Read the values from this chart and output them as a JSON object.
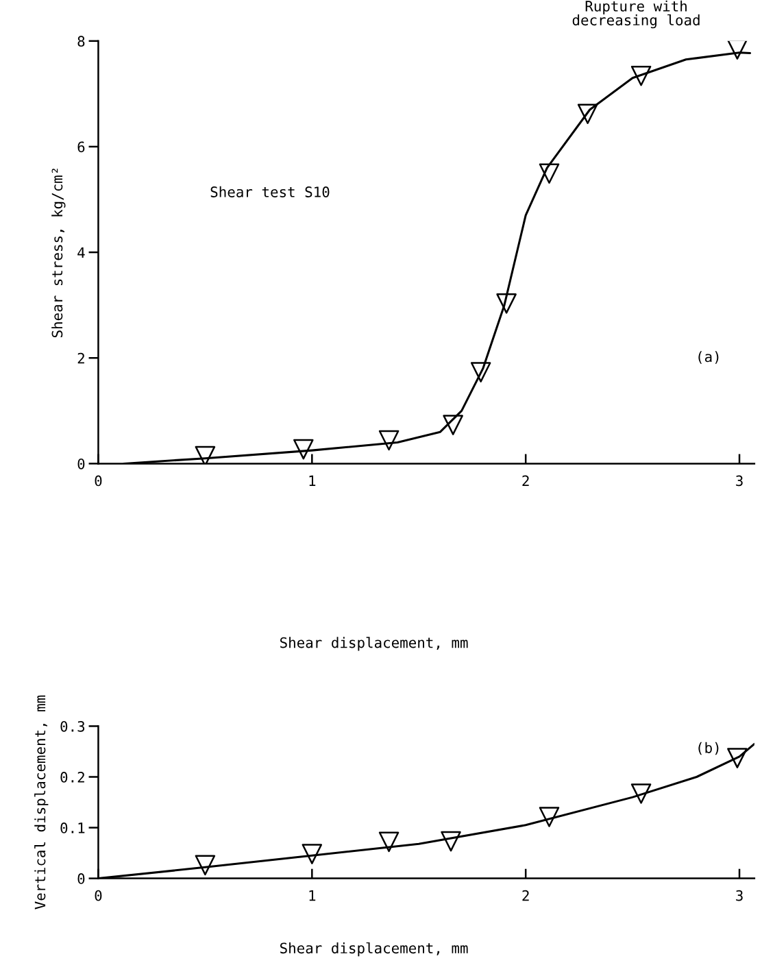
{
  "chart_data": [
    {
      "type": "line",
      "ylabel": "Shear stress, kg/cm²",
      "xlabel": "Shear displacement, mm",
      "annotations": [
        "Rupture with\ndecreasing load",
        "Shear test S10",
        "(a)"
      ],
      "xlim": [
        0,
        3.07
      ],
      "ylim": [
        0,
        8
      ],
      "xticks": [
        0,
        1,
        2,
        3
      ],
      "yticks": [
        0,
        2,
        4,
        6,
        8
      ],
      "grid": false,
      "legend": false,
      "series": [
        {
          "marker": "none",
          "color": "#000000",
          "x": [
            0.12,
            0.5,
            1.0,
            1.4,
            1.6,
            1.7,
            1.8,
            1.9,
            2.0,
            2.1,
            2.3,
            2.5,
            2.75,
            3.0,
            3.05
          ],
          "values": [
            0.0,
            0.1,
            0.25,
            0.4,
            0.6,
            1.0,
            1.8,
            3.0,
            4.7,
            5.6,
            6.7,
            7.3,
            7.65,
            7.78,
            7.77
          ]
        },
        {
          "type": "scatter",
          "marker": "triangle",
          "color": "#000000",
          "x": [
            0.5,
            0.96,
            1.36,
            1.66,
            1.79,
            1.91,
            2.11,
            2.29,
            2.54,
            2.99
          ],
          "values": [
            0.14,
            0.27,
            0.44,
            0.73,
            1.73,
            3.03,
            5.49,
            6.62,
            7.34,
            7.84
          ]
        }
      ]
    },
    {
      "type": "line",
      "ylabel": "Vertical displacement, mm",
      "xlabel": "Shear displacement, mm",
      "annotations": [
        "(b)"
      ],
      "xlim": [
        0,
        3.07
      ],
      "ylim": [
        0,
        0.3
      ],
      "xticks": [
        0,
        1,
        2,
        3
      ],
      "yticks": [
        0,
        0.1,
        0.2,
        0.3
      ],
      "grid": false,
      "legend": false,
      "series": [
        {
          "marker": "none",
          "color": "#000000",
          "x": [
            0,
            0.5,
            1.0,
            1.5,
            2.0,
            2.5,
            2.8,
            3.0,
            3.07
          ],
          "values": [
            0,
            0.022,
            0.045,
            0.068,
            0.105,
            0.16,
            0.2,
            0.24,
            0.265
          ]
        },
        {
          "type": "scatter",
          "marker": "triangle",
          "color": "#000000",
          "x": [
            0.5,
            1.0,
            1.36,
            1.65,
            2.11,
            2.54,
            2.99
          ],
          "values": [
            0.026,
            0.048,
            0.072,
            0.073,
            0.121,
            0.167,
            0.237
          ]
        }
      ]
    }
  ]
}
